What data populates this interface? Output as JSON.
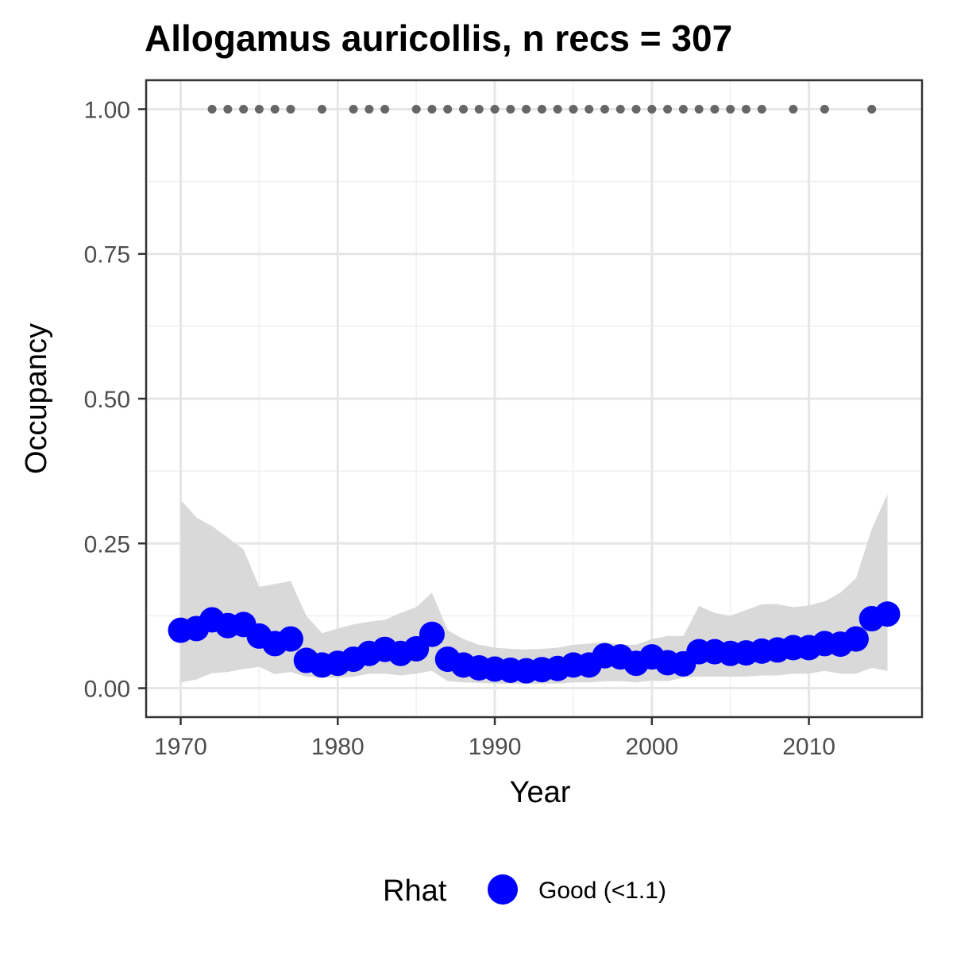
{
  "chart_data": {
    "type": "line",
    "title": "Allogamus auricollis, n recs = 307",
    "xlabel": "Year",
    "ylabel": "Occupancy",
    "xlim": [
      1967.8,
      2017.2
    ],
    "ylim": [
      -0.05,
      1.05
    ],
    "x_ticks": [
      1970,
      1980,
      1990,
      2000,
      2010
    ],
    "x_tick_labels": [
      "1970",
      "1980",
      "1990",
      "2000",
      "2010"
    ],
    "y_ticks": [
      0,
      0.25,
      0.5,
      0.75,
      1
    ],
    "y_tick_labels": [
      "0.00",
      "0.25",
      "0.50",
      "0.75",
      "1.00"
    ],
    "grid": true,
    "legend_position": "bottom",
    "legend_title": "Rhat",
    "series": [
      {
        "name": "Good (<1.1)",
        "color": "#0000ff",
        "x": [
          1970,
          1971,
          1972,
          1973,
          1974,
          1975,
          1976,
          1977,
          1978,
          1979,
          1980,
          1981,
          1982,
          1983,
          1984,
          1985,
          1986,
          1987,
          1988,
          1989,
          1990,
          1991,
          1992,
          1993,
          1994,
          1995,
          1996,
          1997,
          1998,
          1999,
          2000,
          2001,
          2002,
          2003,
          2004,
          2005,
          2006,
          2007,
          2008,
          2009,
          2010,
          2011,
          2012,
          2013,
          2014,
          2015
        ],
        "y": [
          0.1,
          0.103,
          0.118,
          0.108,
          0.11,
          0.09,
          0.077,
          0.085,
          0.048,
          0.04,
          0.043,
          0.05,
          0.06,
          0.067,
          0.06,
          0.068,
          0.093,
          0.05,
          0.04,
          0.035,
          0.033,
          0.031,
          0.03,
          0.032,
          0.034,
          0.04,
          0.04,
          0.056,
          0.054,
          0.043,
          0.054,
          0.044,
          0.042,
          0.063,
          0.063,
          0.06,
          0.061,
          0.064,
          0.066,
          0.07,
          0.07,
          0.077,
          0.076,
          0.085,
          0.12,
          0.128
        ],
        "lower": [
          0.01,
          0.015,
          0.026,
          0.028,
          0.033,
          0.037,
          0.024,
          0.028,
          0.02,
          0.018,
          0.018,
          0.02,
          0.025,
          0.025,
          0.022,
          0.025,
          0.03,
          0.012,
          0.01,
          0.009,
          0.008,
          0.008,
          0.007,
          0.008,
          0.008,
          0.01,
          0.01,
          0.012,
          0.012,
          0.01,
          0.013,
          0.012,
          0.018,
          0.02,
          0.02,
          0.02,
          0.02,
          0.022,
          0.022,
          0.025,
          0.025,
          0.03,
          0.025,
          0.025,
          0.035,
          0.03
        ],
        "upper": [
          0.325,
          0.295,
          0.28,
          0.26,
          0.24,
          0.175,
          0.18,
          0.185,
          0.125,
          0.095,
          0.103,
          0.11,
          0.115,
          0.118,
          0.13,
          0.14,
          0.165,
          0.1,
          0.085,
          0.075,
          0.07,
          0.068,
          0.067,
          0.068,
          0.07,
          0.075,
          0.077,
          0.08,
          0.075,
          0.075,
          0.085,
          0.09,
          0.09,
          0.142,
          0.13,
          0.125,
          0.135,
          0.145,
          0.145,
          0.14,
          0.143,
          0.15,
          0.165,
          0.19,
          0.275,
          0.335
        ]
      }
    ],
    "ribbon_color": "#d9d9d9",
    "record_years": [
      1972,
      1973,
      1974,
      1975,
      1976,
      1977,
      1979,
      1981,
      1982,
      1983,
      1985,
      1986,
      1987,
      1988,
      1989,
      1990,
      1991,
      1992,
      1993,
      1994,
      1995,
      1996,
      1997,
      1998,
      1999,
      2000,
      2001,
      2002,
      2003,
      2004,
      2005,
      2006,
      2007,
      2009,
      2011,
      2014
    ],
    "record_value": 1,
    "record_color": "#666666"
  }
}
